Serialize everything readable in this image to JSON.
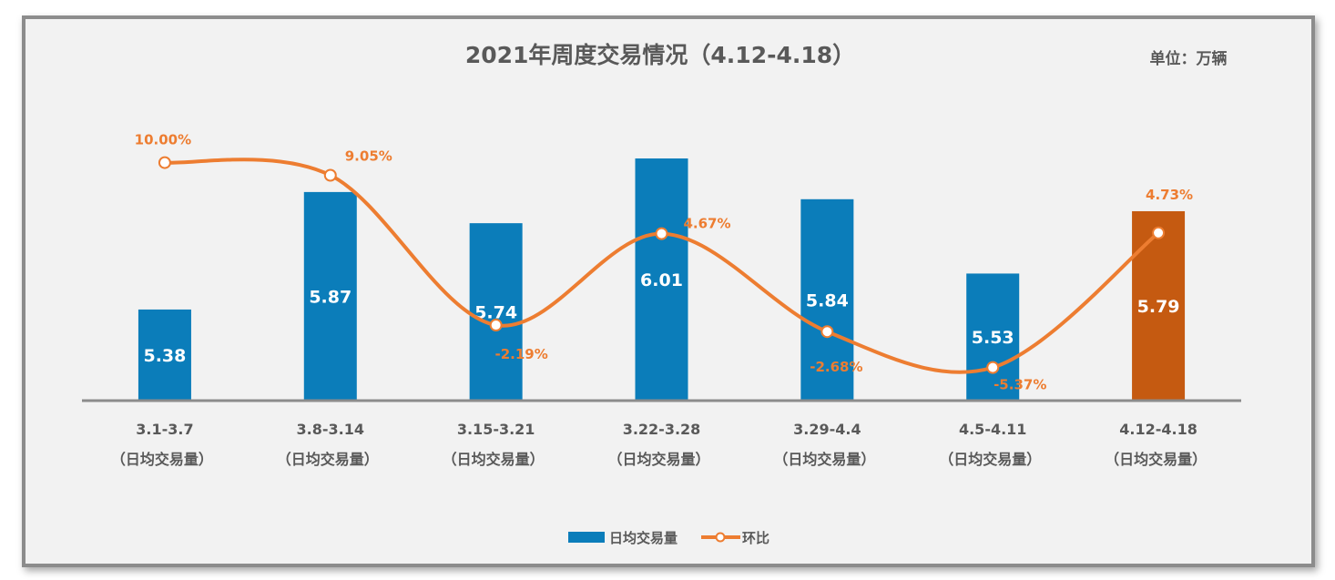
{
  "chart_data": {
    "type": "bar",
    "title": "2021年周度交易情况（4.12-4.18）",
    "unit_label": "单位：万辆",
    "categories": [
      [
        "3.1-3.7",
        "（日均交易量）"
      ],
      [
        "3.8-3.14",
        "（日均交易量）"
      ],
      [
        "3.15-3.21",
        "（日均交易量）"
      ],
      [
        "3.22-3.28",
        "（日均交易量）"
      ],
      [
        "3.29-4.4",
        "（日均交易量）"
      ],
      [
        "4.5-4.11",
        "（日均交易量）"
      ],
      [
        "4.12-4.18",
        "（日均交易量）"
      ]
    ],
    "series": [
      {
        "name": "日均交易量",
        "type": "bar",
        "values": [
          5.38,
          5.87,
          5.74,
          6.01,
          5.84,
          5.53,
          5.79
        ],
        "labels": [
          "5.38",
          "5.87",
          "5.74",
          "6.01",
          "5.84",
          "5.53",
          "5.79"
        ],
        "color": "#0b7dba",
        "highlight_color": "#c55a11",
        "highlight_index": 6,
        "axis": "primary"
      },
      {
        "name": "环比",
        "type": "line",
        "smooth": true,
        "values": [
          10.0,
          9.05,
          -2.19,
          4.67,
          -2.68,
          -5.37,
          4.73
        ],
        "labels": [
          "10.00%",
          "9.05%",
          "-2.19%",
          "4.67%",
          "-2.68%",
          "-5.37%",
          "4.73%"
        ],
        "color": "#ed7d31",
        "axis": "secondary"
      }
    ],
    "ylim": [
      5.0,
      6.2
    ],
    "y2lim": [
      -12,
      18
    ],
    "grid": false,
    "axis_labels_visible": false,
    "legend_position": "bottom"
  }
}
